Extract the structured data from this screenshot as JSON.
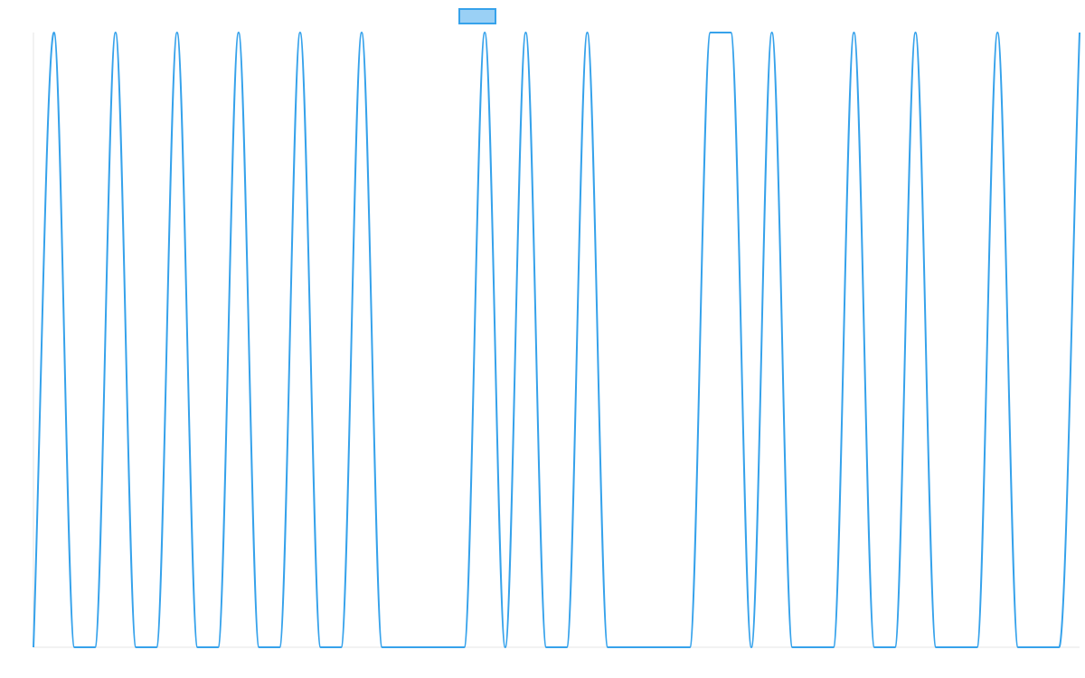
{
  "chart_data": {
    "type": "line",
    "title": "",
    "xlabel": "",
    "ylabel": "",
    "legend": {
      "position": "top-center",
      "entries": [
        {
          "label": "",
          "fill": "#9AD0F5",
          "stroke": "#36A2EB"
        }
      ]
    },
    "grid": false,
    "show_tick_labels": false,
    "colors": {
      "line": "#36A2EB",
      "legend_fill": "#9AD0F5",
      "axis": "#E5E5E5"
    },
    "xlim": [
      0,
      51
    ],
    "ylim": [
      0,
      1
    ],
    "series": [
      {
        "name": "",
        "x": [
          0,
          1,
          2,
          3,
          4,
          5,
          6,
          7,
          8,
          9,
          10,
          11,
          12,
          13,
          14,
          15,
          16,
          17,
          18,
          19,
          20,
          21,
          22,
          23,
          24,
          25,
          26,
          27,
          28,
          29,
          30,
          31,
          32,
          33,
          34,
          35,
          36,
          37,
          38,
          39,
          40,
          41,
          42,
          43,
          44,
          45,
          46,
          47,
          48,
          49,
          50,
          51
        ],
        "y": [
          0,
          1,
          0,
          0,
          1,
          0,
          0,
          1,
          0,
          0,
          1,
          0,
          0,
          1,
          0,
          0,
          1,
          0,
          0,
          0,
          0,
          0,
          1,
          0,
          1,
          0,
          0,
          1,
          0,
          0,
          0,
          0,
          0,
          1,
          1,
          0,
          1,
          0,
          0,
          0,
          1,
          0,
          0,
          1,
          0,
          0,
          0,
          1,
          0,
          0,
          0,
          1
        ]
      }
    ]
  }
}
